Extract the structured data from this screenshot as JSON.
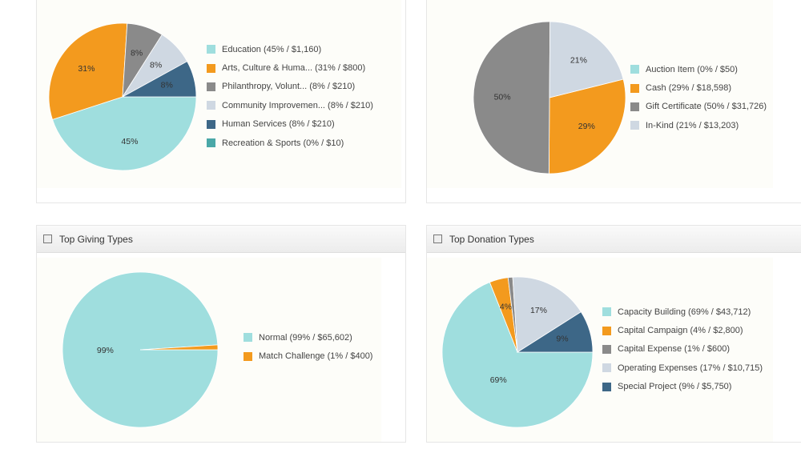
{
  "colors": {
    "teal_light": "#9fdede",
    "orange": "#f39a1e",
    "gray": "#8a8a8a",
    "light": "#cfd8e2",
    "navy": "#3d6787",
    "teal": "#4aa8a8"
  },
  "chart_data": [
    {
      "type": "pie",
      "title": "",
      "categories": [
        "Education",
        "Arts, Culture & Huma...",
        "Philanthropy, Volunt...",
        "Community Improvemen...",
        "Human Services",
        "Recreation & Sports"
      ],
      "values": [
        45,
        31,
        8,
        8,
        8,
        0
      ],
      "legend": [
        "Education (45% / $1,160)",
        "Arts, Culture & Huma... (31% / $800)",
        "Philanthropy, Volunt... (8% / $210)",
        "Community Improvemen... (8% / $210)",
        "Human Services (8% / $210)",
        "Recreation & Sports (0% / $10)"
      ],
      "colors": [
        "#9fdede",
        "#f39a1e",
        "#8a8a8a",
        "#cfd8e2",
        "#3d6787",
        "#4aa8a8"
      ],
      "legend_position": "right"
    },
    {
      "type": "pie",
      "title": "",
      "categories": [
        "Auction Item",
        "Cash",
        "Gift Certificate",
        "In-Kind"
      ],
      "values": [
        0,
        29,
        50,
        21
      ],
      "legend": [
        "Auction Item (0% / $50)",
        "Cash (29% / $18,598)",
        "Gift Certificate (50% / $31,726)",
        "In-Kind (21% / $13,203)"
      ],
      "colors": [
        "#9fdede",
        "#f39a1e",
        "#8a8a8a",
        "#cfd8e2"
      ],
      "legend_position": "right"
    },
    {
      "type": "pie",
      "title": "Top Giving Types",
      "categories": [
        "Normal",
        "Match Challenge"
      ],
      "values": [
        99,
        1
      ],
      "legend": [
        "Normal (99% / $65,602)",
        "Match Challenge (1% / $400)"
      ],
      "colors": [
        "#9fdede",
        "#f39a1e"
      ],
      "legend_position": "right"
    },
    {
      "type": "pie",
      "title": "Top Donation Types",
      "categories": [
        "Capacity Building",
        "Capital Campaign",
        "Capital Expense",
        "Operating Expenses",
        "Special Project"
      ],
      "values": [
        69,
        4,
        1,
        17,
        9
      ],
      "legend": [
        "Capacity Building (69% / $43,712)",
        "Capital Campaign (4% / $2,800)",
        "Capital Expense (1% / $600)",
        "Operating Expenses (17% / $10,715)",
        "Special Project (9% / $5,750)"
      ],
      "colors": [
        "#9fdede",
        "#f39a1e",
        "#8a8a8a",
        "#cfd8e2",
        "#3d6787"
      ],
      "legend_position": "right"
    }
  ]
}
